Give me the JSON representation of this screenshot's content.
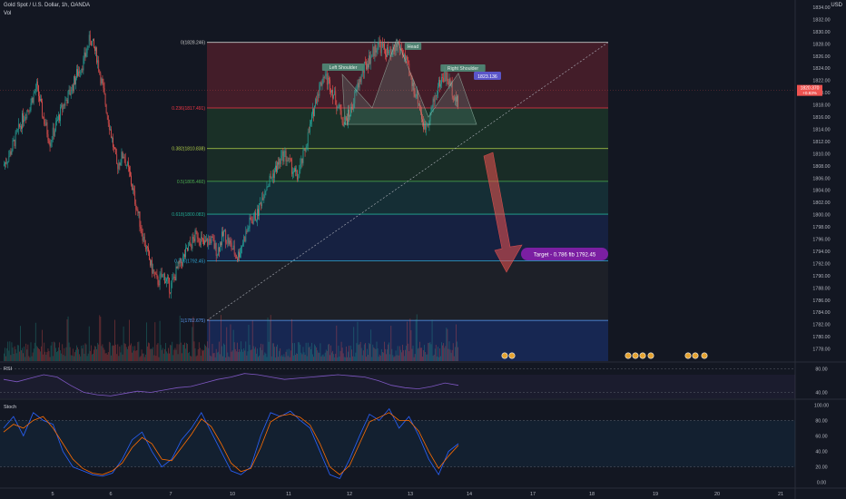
{
  "header": {
    "symbol": "Gold Spot / U.S. Dollar, 1h, OANDA",
    "volume_label": "Vol",
    "currency": "USD"
  },
  "chart_data": [
    {
      "type": "candlestick",
      "title": "Gold Spot / U.S. Dollar, 1h, OANDA",
      "currency": "USD",
      "ylim": [
        1776,
        1834
      ],
      "y_ticks": [
        "1834.00",
        "1832.00",
        "1830.00",
        "1828.00",
        "1826.00",
        "1824.00",
        "1822.00",
        "1820.00",
        "1818.00",
        "1816.00",
        "1814.00",
        "1812.00",
        "1810.00",
        "1808.00",
        "1806.00",
        "1804.00",
        "1802.00",
        "1800.00",
        "1798.00",
        "1796.00",
        "1794.00",
        "1792.00",
        "1790.00",
        "1788.00",
        "1786.00",
        "1784.00",
        "1782.00",
        "1780.00",
        "1778.00"
      ],
      "x_ticks": [
        "5",
        "6",
        "7",
        "10",
        "11",
        "12",
        "13",
        "14",
        "17",
        "18",
        "19",
        "20",
        "21"
      ],
      "price_path": [
        1808,
        1810,
        1813,
        1816,
        1818,
        1821,
        1816,
        1812,
        1815,
        1818,
        1820,
        1823,
        1825,
        1829,
        1826,
        1820,
        1814,
        1808,
        1810,
        1806,
        1801,
        1796,
        1792,
        1789,
        1790,
        1788,
        1791,
        1793,
        1795,
        1797,
        1795,
        1796,
        1794,
        1797,
        1795,
        1793,
        1796,
        1799,
        1800,
        1804,
        1806,
        1808,
        1810,
        1808,
        1806,
        1810,
        1815,
        1820,
        1823,
        1821,
        1818,
        1815,
        1817,
        1821,
        1824,
        1826,
        1828,
        1827,
        1826,
        1828,
        1826,
        1822,
        1819,
        1814,
        1817,
        1821,
        1823,
        1821,
        1818
      ],
      "current_price": "1820.370",
      "current_change": "+0.83%",
      "last_label": "1823.136",
      "fibonacci": {
        "levels": [
          {
            "ratio": "0",
            "price": 1828.246,
            "label": "0(1828.246)",
            "color": "#c8c8c8"
          },
          {
            "ratio": "0.236",
            "price": 1817.491,
            "label": "0.236(1817.491)",
            "color": "#f23645"
          },
          {
            "ratio": "0.382",
            "price": 1810.838,
            "label": "0.382(1810.838)",
            "color": "#b4d44a"
          },
          {
            "ratio": "0.5",
            "price": 1805.46,
            "label": "0.5(1805.460)",
            "color": "#4caf50"
          },
          {
            "ratio": "0.618",
            "price": 1800.083,
            "label": "0.618(1800.083)",
            "color": "#22ab94"
          },
          {
            "ratio": "0.786",
            "price": 1792.45,
            "label": "0.786(1792.45)",
            "color": "#2ea8d8"
          },
          {
            "ratio": "1",
            "price": 1782.675,
            "label": "1(1782.675)",
            "color": "#5b9cf6"
          }
        ]
      },
      "pattern_labels": [
        "Left Shoulder",
        "Head",
        "Right Shoulder"
      ],
      "target_label": "Target - 0.786 fib 1792.45",
      "colors": {
        "up": "#26a69a",
        "down": "#ef5350",
        "target": "#7b1fa2"
      }
    },
    {
      "type": "line",
      "title": "RSI",
      "ylim": [
        30,
        90
      ],
      "y_ticks": [
        "80.00",
        "40.00"
      ],
      "values": [
        62,
        58,
        64,
        70,
        66,
        52,
        40,
        36,
        34,
        38,
        42,
        40,
        44,
        48,
        50,
        56,
        62,
        66,
        72,
        70,
        66,
        62,
        64,
        66,
        68,
        70,
        68,
        66,
        60,
        52,
        48,
        46,
        50,
        56,
        52
      ]
    },
    {
      "type": "line",
      "title": "Stoch",
      "ylim": [
        -5,
        105
      ],
      "y_ticks": [
        "100.00",
        "80.00",
        "60.00",
        "40.00",
        "20.00",
        "0.00"
      ],
      "series": [
        {
          "values": [
            70,
            85,
            60,
            90,
            80,
            75,
            40,
            20,
            15,
            10,
            8,
            12,
            30,
            55,
            65,
            40,
            20,
            30,
            55,
            70,
            90,
            65,
            40,
            15,
            10,
            20,
            60,
            90,
            85,
            92,
            80,
            70,
            40,
            10,
            5,
            30,
            60,
            88,
            80,
            95,
            70,
            85,
            60,
            30,
            10,
            40,
            50
          ]
        },
        {
          "values": [
            65,
            75,
            70,
            80,
            85,
            70,
            50,
            30,
            18,
            12,
            10,
            15,
            25,
            45,
            58,
            50,
            30,
            28,
            45,
            62,
            82,
            72,
            50,
            25,
            14,
            18,
            45,
            78,
            86,
            88,
            84,
            74,
            50,
            20,
            10,
            22,
            50,
            78,
            84,
            90,
            80,
            80,
            66,
            40,
            18,
            34,
            48
          ]
        }
      ]
    }
  ]
}
